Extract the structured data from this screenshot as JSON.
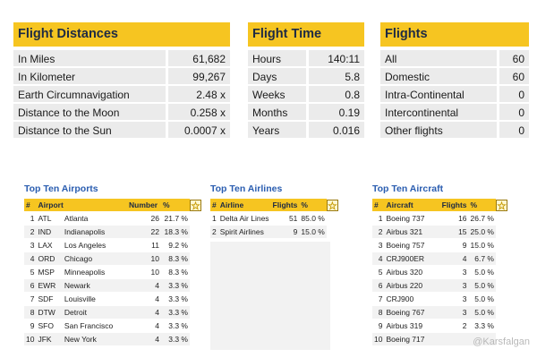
{
  "distances": {
    "title": "Flight Distances",
    "rows": [
      {
        "label": "In Miles",
        "value": "61,682"
      },
      {
        "label": "In Kilometer",
        "value": "99,267"
      },
      {
        "label": "Earth Circumnavigation",
        "value": "2.48 x"
      },
      {
        "label": "Distance to the Moon",
        "value": "0.258 x"
      },
      {
        "label": "Distance to the Sun",
        "value": "0.0007 x"
      }
    ]
  },
  "time": {
    "title": "Flight Time",
    "rows": [
      {
        "label": "Hours",
        "value": "140:11"
      },
      {
        "label": "Days",
        "value": "5.8"
      },
      {
        "label": "Weeks",
        "value": "0.8"
      },
      {
        "label": "Months",
        "value": "0.19"
      },
      {
        "label": "Years",
        "value": "0.016"
      }
    ]
  },
  "flights": {
    "title": "Flights",
    "rows": [
      {
        "label": "All",
        "value": "60"
      },
      {
        "label": "Domestic",
        "value": "60"
      },
      {
        "label": "Intra-Continental",
        "value": "0"
      },
      {
        "label": "Intercontinental",
        "value": "0"
      },
      {
        "label": "Other flights",
        "value": "0"
      }
    ]
  },
  "airports": {
    "title": "Top Ten Airports",
    "headers": [
      "#",
      "Airport",
      "Number",
      "%"
    ],
    "rows": [
      [
        "1",
        "ATL",
        "Atlanta",
        "26",
        "21.7 %"
      ],
      [
        "2",
        "IND",
        "Indianapolis",
        "22",
        "18.3 %"
      ],
      [
        "3",
        "LAX",
        "Los Angeles",
        "11",
        "9.2 %"
      ],
      [
        "4",
        "ORD",
        "Chicago",
        "10",
        "8.3 %"
      ],
      [
        "5",
        "MSP",
        "Minneapolis",
        "10",
        "8.3 %"
      ],
      [
        "6",
        "EWR",
        "Newark",
        "4",
        "3.3 %"
      ],
      [
        "7",
        "SDF",
        "Louisville",
        "4",
        "3.3 %"
      ],
      [
        "8",
        "DTW",
        "Detroit",
        "4",
        "3.3 %"
      ],
      [
        "9",
        "SFO",
        "San Francisco",
        "4",
        "3.3 %"
      ],
      [
        "10",
        "JFK",
        "New York",
        "4",
        "3.3 %"
      ]
    ]
  },
  "airlines": {
    "title": "Top Ten Airlines",
    "headers": [
      "#",
      "Airline",
      "Flights",
      "%"
    ],
    "rows": [
      [
        "1",
        "Delta Air Lines",
        "51",
        "85.0 %"
      ],
      [
        "2",
        "Spirit Airlines",
        "9",
        "15.0 %"
      ]
    ]
  },
  "aircraft": {
    "title": "Top Ten Aircraft",
    "headers": [
      "#",
      "Aircraft",
      "Flights",
      "%"
    ],
    "rows": [
      [
        "1",
        "Boeing 737",
        "16",
        "26.7 %"
      ],
      [
        "2",
        "Airbus 321",
        "15",
        "25.0 %"
      ],
      [
        "3",
        "Boeing 757",
        "9",
        "15.0 %"
      ],
      [
        "4",
        "CRJ900ER",
        "4",
        "6.7 %"
      ],
      [
        "5",
        "Airbus 320",
        "3",
        "5.0 %"
      ],
      [
        "6",
        "Airbus 220",
        "3",
        "5.0 %"
      ],
      [
        "7",
        "CRJ900",
        "3",
        "5.0 %"
      ],
      [
        "8",
        "Boeing 767",
        "3",
        "5.0 %"
      ],
      [
        "9",
        "Airbus 319",
        "2",
        "3.3 %"
      ],
      [
        "10",
        "Boeing 717",
        "",
        ""
      ]
    ]
  },
  "star_glyph": "☆",
  "watermark": "@Karsfalgan",
  "colors": {
    "header": "#f6c521",
    "title_blue": "#2a5db0",
    "cell_gray": "#ebebeb"
  }
}
